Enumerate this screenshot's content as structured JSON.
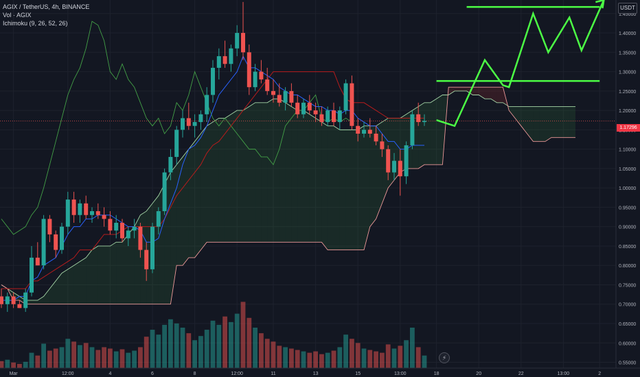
{
  "legend": {
    "symbol": "AGIX / TetherUS, 4h, BINANCE",
    "volume": "Vol · AGIX",
    "ichimoku": "Ichimoku (9, 26, 52, 26)"
  },
  "currency_button": "USDT",
  "last_price": "1.17296",
  "colors": {
    "background": "#131722",
    "up": "#26a69a",
    "down": "#ef5350",
    "annotation": "#4cff45",
    "conversion": "#2962ff",
    "base": "#b71c1c",
    "lagging": "#43a047",
    "leading_a": "#a5d6a7",
    "leading_b": "#ef9a9a"
  },
  "chart_data": {
    "type": "candlestick",
    "y_axis": {
      "ticks": [
        "1.45000",
        "1.40000",
        "1.35000",
        "1.30000",
        "1.25000",
        "1.20000",
        "1.15000",
        "1.10000",
        "1.05000",
        "1.00000",
        "0.95000",
        "0.90000",
        "0.85000",
        "0.80000",
        "0.75000",
        "0.70000",
        "0.65000",
        "0.60000",
        "0.55000"
      ],
      "tick_values": [
        1.45,
        1.4,
        1.35,
        1.3,
        1.25,
        1.2,
        1.15,
        1.1,
        1.05,
        1.0,
        0.95,
        0.9,
        0.85,
        0.8,
        0.75,
        0.7,
        0.65,
        0.6,
        0.55
      ],
      "range": [
        0.535,
        1.485
      ]
    },
    "x_axis": {
      "ticks": [
        "Mar",
        "12:00",
        "4",
        "6",
        "8",
        "12:00",
        "11",
        "13",
        "15",
        "13:00",
        "18",
        "20",
        "22",
        "13:00",
        "2"
      ],
      "tick_positions": [
        2,
        11,
        18,
        25,
        32,
        39,
        45,
        52,
        59,
        66,
        72,
        79,
        86,
        93,
        99
      ]
    },
    "price_line": 1.173,
    "candles": [
      [
        0.72,
        0.74,
        0.69,
        0.7
      ],
      [
        0.7,
        0.73,
        0.68,
        0.72
      ],
      [
        0.72,
        0.73,
        0.69,
        0.7
      ],
      [
        0.7,
        0.71,
        0.69,
        0.69
      ],
      [
        0.69,
        0.74,
        0.68,
        0.73
      ],
      [
        0.73,
        0.85,
        0.72,
        0.82
      ],
      [
        0.82,
        0.86,
        0.8,
        0.8
      ],
      [
        0.8,
        0.93,
        0.79,
        0.92
      ],
      [
        0.92,
        0.93,
        0.86,
        0.88
      ],
      [
        0.88,
        0.89,
        0.82,
        0.84
      ],
      [
        0.84,
        0.91,
        0.83,
        0.9
      ],
      [
        0.9,
        0.99,
        0.88,
        0.97
      ],
      [
        0.97,
        0.99,
        0.91,
        0.93
      ],
      [
        0.93,
        0.97,
        0.91,
        0.96
      ],
      [
        0.96,
        0.98,
        0.92,
        0.93
      ],
      [
        0.93,
        0.95,
        0.91,
        0.94
      ],
      [
        0.94,
        0.96,
        0.92,
        0.93
      ],
      [
        0.93,
        0.95,
        0.9,
        0.92
      ],
      [
        0.92,
        0.94,
        0.88,
        0.89
      ],
      [
        0.89,
        0.93,
        0.87,
        0.91
      ],
      [
        0.91,
        0.92,
        0.86,
        0.87
      ],
      [
        0.87,
        0.9,
        0.85,
        0.89
      ],
      [
        0.89,
        0.92,
        0.87,
        0.9
      ],
      [
        0.9,
        0.91,
        0.82,
        0.84
      ],
      [
        0.84,
        0.86,
        0.76,
        0.79
      ],
      [
        0.79,
        0.91,
        0.78,
        0.9
      ],
      [
        0.9,
        0.95,
        0.88,
        0.94
      ],
      [
        0.94,
        1.05,
        0.93,
        1.04
      ],
      [
        1.04,
        1.1,
        1.02,
        1.08
      ],
      [
        1.08,
        1.16,
        1.06,
        1.15
      ],
      [
        1.15,
        1.2,
        1.13,
        1.18
      ],
      [
        1.18,
        1.22,
        1.15,
        1.16
      ],
      [
        1.16,
        1.19,
        1.13,
        1.17
      ],
      [
        1.17,
        1.2,
        1.15,
        1.19
      ],
      [
        1.19,
        1.26,
        1.17,
        1.24
      ],
      [
        1.24,
        1.33,
        1.22,
        1.31
      ],
      [
        1.31,
        1.36,
        1.28,
        1.34
      ],
      [
        1.34,
        1.38,
        1.31,
        1.32
      ],
      [
        1.32,
        1.37,
        1.3,
        1.36
      ],
      [
        1.36,
        1.42,
        1.34,
        1.4
      ],
      [
        1.4,
        1.48,
        1.33,
        1.35
      ],
      [
        1.35,
        1.37,
        1.24,
        1.26
      ],
      [
        1.26,
        1.32,
        1.25,
        1.3
      ],
      [
        1.3,
        1.33,
        1.27,
        1.28
      ],
      [
        1.28,
        1.31,
        1.24,
        1.25
      ],
      [
        1.25,
        1.28,
        1.22,
        1.24
      ],
      [
        1.24,
        1.27,
        1.21,
        1.22
      ],
      [
        1.22,
        1.26,
        1.2,
        1.25
      ],
      [
        1.25,
        1.27,
        1.21,
        1.22
      ],
      [
        1.22,
        1.24,
        1.18,
        1.19
      ],
      [
        1.19,
        1.23,
        1.18,
        1.22
      ],
      [
        1.22,
        1.24,
        1.19,
        1.2
      ],
      [
        1.2,
        1.22,
        1.17,
        1.19
      ],
      [
        1.19,
        1.21,
        1.16,
        1.17
      ],
      [
        1.17,
        1.21,
        1.16,
        1.2
      ],
      [
        1.2,
        1.22,
        1.16,
        1.17
      ],
      [
        1.17,
        1.21,
        1.15,
        1.2
      ],
      [
        1.2,
        1.28,
        1.19,
        1.27
      ],
      [
        1.27,
        1.29,
        1.15,
        1.16
      ],
      [
        1.16,
        1.18,
        1.12,
        1.14
      ],
      [
        1.14,
        1.17,
        1.13,
        1.15
      ],
      [
        1.15,
        1.18,
        1.13,
        1.14
      ],
      [
        1.14,
        1.16,
        1.11,
        1.12
      ],
      [
        1.12,
        1.14,
        1.08,
        1.1
      ],
      [
        1.1,
        1.11,
        1.02,
        1.04
      ],
      [
        1.04,
        1.09,
        1.02,
        1.07
      ],
      [
        1.07,
        1.1,
        0.98,
        1.03
      ],
      [
        1.03,
        1.12,
        1.01,
        1.11
      ],
      [
        1.11,
        1.2,
        1.1,
        1.19
      ],
      [
        1.19,
        1.22,
        1.16,
        1.17
      ],
      [
        1.17,
        1.19,
        1.16,
        1.173
      ]
    ],
    "volume_scale": {
      "min_price": 0.535,
      "full_height_price": 0.715
    },
    "volumes": [
      0.1,
      0.12,
      0.08,
      0.06,
      0.09,
      0.22,
      0.18,
      0.35,
      0.25,
      0.28,
      0.3,
      0.42,
      0.38,
      0.33,
      0.36,
      0.3,
      0.26,
      0.3,
      0.28,
      0.24,
      0.27,
      0.22,
      0.25,
      0.3,
      0.45,
      0.55,
      0.48,
      0.62,
      0.7,
      0.64,
      0.58,
      0.5,
      0.4,
      0.46,
      0.55,
      0.68,
      0.62,
      0.74,
      0.66,
      0.78,
      0.95,
      0.72,
      0.58,
      0.5,
      0.42,
      0.38,
      0.32,
      0.3,
      0.28,
      0.26,
      0.24,
      0.22,
      0.24,
      0.2,
      0.22,
      0.25,
      0.3,
      0.48,
      0.42,
      0.36,
      0.28,
      0.26,
      0.24,
      0.22,
      0.34,
      0.28,
      0.32,
      0.4,
      0.58,
      0.3,
      0.18
    ],
    "ichimoku": {
      "conversion_line": [
        0.71,
        0.71,
        0.71,
        0.72,
        0.72,
        0.76,
        0.77,
        0.8,
        0.81,
        0.82,
        0.85,
        0.88,
        0.9,
        0.9,
        0.92,
        0.92,
        0.93,
        0.93,
        0.93,
        0.92,
        0.91,
        0.9,
        0.9,
        0.89,
        0.86,
        0.86,
        0.87,
        0.92,
        0.96,
        1.0,
        1.06,
        1.1,
        1.11,
        1.13,
        1.16,
        1.2,
        1.24,
        1.26,
        1.28,
        1.3,
        1.34,
        1.31,
        1.31,
        1.3,
        1.29,
        1.28,
        1.26,
        1.25,
        1.24,
        1.24,
        1.23,
        1.22,
        1.21,
        1.21,
        1.2,
        1.2,
        1.19,
        1.2,
        1.2,
        1.18,
        1.17,
        1.16,
        1.16,
        1.14,
        1.12,
        1.12,
        1.1,
        1.1,
        1.11,
        1.11,
        1.11
      ],
      "base_line": [
        0.74,
        0.74,
        0.74,
        0.74,
        0.74,
        0.76,
        0.76,
        0.77,
        0.78,
        0.79,
        0.8,
        0.81,
        0.82,
        0.84,
        0.84,
        0.84,
        0.86,
        0.88,
        0.88,
        0.88,
        0.89,
        0.9,
        0.9,
        0.9,
        0.9,
        0.9,
        0.9,
        0.92,
        0.95,
        0.98,
        1.0,
        1.02,
        1.04,
        1.06,
        1.09,
        1.11,
        1.12,
        1.14,
        1.16,
        1.18,
        1.2,
        1.22,
        1.24,
        1.26,
        1.28,
        1.3,
        1.3,
        1.3,
        1.3,
        1.3,
        1.3,
        1.3,
        1.3,
        1.3,
        1.3,
        1.3,
        1.26,
        1.23,
        1.22,
        1.22,
        1.22,
        1.21,
        1.2,
        1.19,
        1.18,
        1.18,
        1.18,
        1.18,
        1.18,
        1.18,
        1.18
      ],
      "lagging_span": [
        0.92,
        0.9,
        0.88,
        0.89,
        0.9,
        0.93,
        0.95,
        1.0,
        1.06,
        1.12,
        1.18,
        1.24,
        1.28,
        1.31,
        1.36,
        1.43,
        1.42,
        1.38,
        1.3,
        1.28,
        1.32,
        1.28,
        1.26,
        1.22,
        1.18,
        1.16,
        1.18,
        1.14,
        1.16,
        1.22,
        1.2,
        1.24,
        1.3,
        1.26,
        1.22,
        1.18,
        1.16,
        1.18,
        1.16,
        1.14,
        1.12,
        1.1,
        1.1,
        1.08,
        1.08,
        1.06,
        1.1,
        1.16,
        1.18,
        1.2,
        1.2,
        1.22,
        1.24,
        1.18,
        1.17,
        1.18,
        1.17,
        1.18,
        1.17
      ],
      "leading_span_a": [
        0.75,
        0.74,
        0.73,
        0.72,
        0.71,
        0.71,
        0.71,
        0.72,
        0.74,
        0.76,
        0.78,
        0.79,
        0.8,
        0.81,
        0.82,
        0.84,
        0.85,
        0.85,
        0.85,
        0.86,
        0.86,
        0.88,
        0.9,
        0.93,
        0.94,
        0.96,
        0.98,
        1.01,
        1.04,
        1.06,
        1.08,
        1.1,
        1.12,
        1.14,
        1.16,
        1.17,
        1.18,
        1.18,
        1.19,
        1.2,
        1.2,
        1.21,
        1.22,
        1.22,
        1.22,
        1.23,
        1.23,
        1.22,
        1.21,
        1.2,
        1.2,
        1.19,
        1.18,
        1.17,
        1.16,
        1.16,
        1.15,
        1.15,
        1.15,
        1.15,
        1.16,
        1.16,
        1.16,
        1.17,
        1.18,
        1.18,
        1.18,
        1.19,
        1.2,
        1.21,
        1.22,
        1.22,
        1.23,
        1.24,
        1.24,
        1.25,
        1.25,
        1.25,
        1.24,
        1.24,
        1.23,
        1.23,
        1.22,
        1.22,
        1.21,
        1.21,
        1.21,
        1.21,
        1.21,
        1.21,
        1.21,
        1.21,
        1.21,
        1.21,
        1.21,
        1.21
      ],
      "leading_span_b": [
        0.75,
        0.74,
        0.71,
        0.71,
        0.7,
        0.7,
        0.7,
        0.7,
        0.7,
        0.7,
        0.7,
        0.7,
        0.7,
        0.7,
        0.7,
        0.7,
        0.7,
        0.7,
        0.7,
        0.7,
        0.7,
        0.7,
        0.7,
        0.7,
        0.7,
        0.7,
        0.7,
        0.7,
        0.7,
        0.8,
        0.8,
        0.82,
        0.82,
        0.84,
        0.86,
        0.86,
        0.86,
        0.86,
        0.86,
        0.86,
        0.86,
        0.86,
        0.86,
        0.86,
        0.86,
        0.86,
        0.86,
        0.86,
        0.86,
        0.86,
        0.86,
        0.86,
        0.86,
        0.86,
        0.84,
        0.84,
        0.84,
        0.84,
        0.84,
        0.84,
        0.84,
        0.9,
        0.92,
        0.96,
        1.0,
        1.02,
        1.04,
        1.05,
        1.05,
        1.05,
        1.06,
        1.06,
        1.06,
        1.06,
        1.26,
        1.26,
        1.26,
        1.26,
        1.26,
        1.26,
        1.26,
        1.26,
        1.26,
        1.26,
        1.2,
        1.18,
        1.16,
        1.14,
        1.12,
        1.12,
        1.12,
        1.13,
        1.13,
        1.13,
        1.13,
        1.13
      ]
    },
    "annotations": {
      "resistance_lines": [
        {
          "price": 1.276,
          "from_x": 72,
          "to_x": 99
        },
        {
          "price": 1.467,
          "from_x": 77,
          "to_x": 99
        }
      ],
      "projection_path": [
        [
          72,
          1.175
        ],
        [
          75,
          1.16
        ],
        [
          80,
          1.33
        ],
        [
          83,
          1.265
        ],
        [
          84,
          1.26
        ],
        [
          88,
          1.45
        ],
        [
          90.5,
          1.35
        ],
        [
          94,
          1.44
        ],
        [
          96,
          1.355
        ],
        [
          99.7,
          1.485
        ]
      ],
      "arrow_tip": [
        99.7,
        1.485
      ]
    }
  }
}
